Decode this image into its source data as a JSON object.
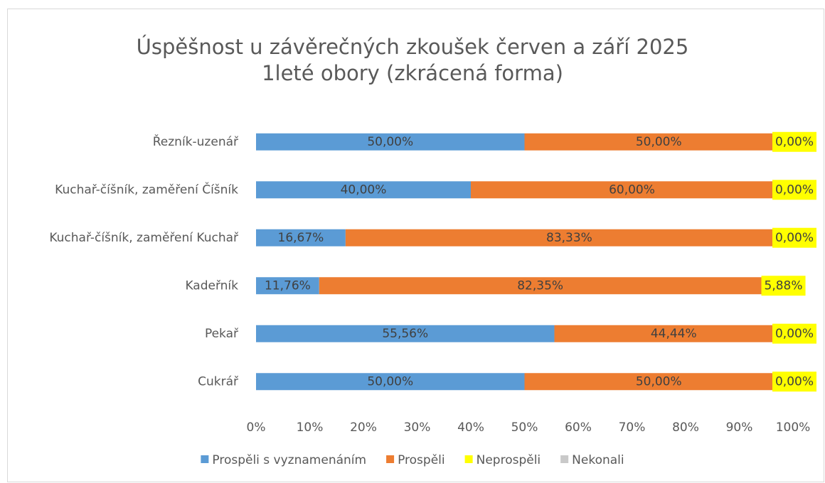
{
  "chart_data": {
    "type": "bar",
    "orientation": "horizontal",
    "stacked": true,
    "title": "Úspěšnost u závěrečných zkoušek červen a září 2025",
    "subtitle": "1leté obory (zkrácená forma)",
    "categories": [
      "Řezník-uzenář",
      "Kuchař-číšník, zaměření Číšník",
      "Kuchař-číšník, zaměření Kuchař",
      "Kadeřník",
      "Pekař",
      "Cukrář"
    ],
    "series": [
      {
        "name": "Prospěli s vyznamenáním",
        "color": "#5b9bd5",
        "values": [
          50,
          40,
          16.67,
          11.76,
          55.56,
          50
        ],
        "value_labels": [
          "50,00%",
          "40,00%",
          "16,67%",
          "11,76%",
          "55,56%",
          "50,00%"
        ]
      },
      {
        "name": "Prospěli",
        "color": "#ed7d31",
        "values": [
          50,
          60,
          83.33,
          82.35,
          44.44,
          50
        ],
        "value_labels": [
          "50,00%",
          "60,00%",
          "83,33%",
          "82,35%",
          "44,44%",
          "50,00%"
        ]
      },
      {
        "name": "Neprospěli",
        "color": "#ffff00",
        "values": [
          0,
          0,
          0,
          5.88,
          0,
          0
        ],
        "value_labels": [
          "0,00%",
          "0,00%",
          "0,00%",
          "5,88%",
          "0,00%",
          "0,00%"
        ]
      },
      {
        "name": "Nekonali",
        "color": "#c9c9c9",
        "values": [
          0,
          0,
          0,
          0,
          0,
          0
        ]
      }
    ],
    "xlim": [
      0,
      100
    ],
    "xticks": [
      {
        "value": 0,
        "label": "0%"
      },
      {
        "value": 10,
        "label": "10%"
      },
      {
        "value": 20,
        "label": "20%"
      },
      {
        "value": 30,
        "label": "30%"
      },
      {
        "value": 40,
        "label": "40%"
      },
      {
        "value": 50,
        "label": "50%"
      },
      {
        "value": 60,
        "label": "60%"
      },
      {
        "value": 70,
        "label": "70%"
      },
      {
        "value": 80,
        "label": "80%"
      },
      {
        "value": 90,
        "label": "90%"
      },
      {
        "value": 100,
        "label": "100%"
      }
    ],
    "legend": "bottom"
  }
}
